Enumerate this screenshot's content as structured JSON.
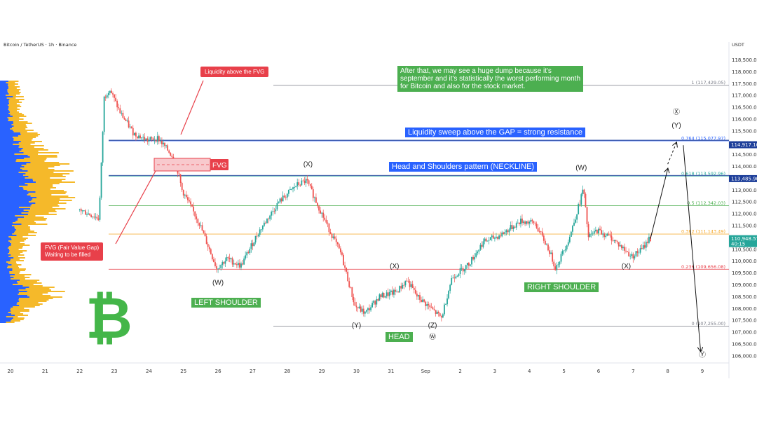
{
  "header": {
    "title": "Bitcoin / TetherUS · 1h · Binance",
    "currency": "USDT"
  },
  "colors": {
    "up": "#26a69a",
    "down": "#ef5350",
    "green_box": "#4caf50",
    "blue_box": "#2962ff",
    "red_box": "#e8404a",
    "volume_profile_up": "#f5b92a",
    "volume_profile_down": "#2962ff",
    "btc_logo": "#44b649"
  },
  "chart_data": {
    "type": "candlestick",
    "x_ticks": [
      "20",
      "21",
      "22",
      "23",
      "24",
      "25",
      "26",
      "27",
      "28",
      "29",
      "30",
      "31",
      "Sep",
      "2",
      "3",
      "4",
      "5",
      "6",
      "7",
      "8",
      "9"
    ],
    "y_ticks": [
      "118,500.00",
      "118,000.00",
      "117,500.00",
      "117,000.00",
      "116,500.00",
      "116,000.00",
      "115,500.00",
      "115,000.00",
      "114,500.00",
      "114,000.00",
      "113,500.00",
      "113,000.00",
      "112,500.00",
      "112,000.00",
      "111,500.00",
      "111,000.00",
      "110,500.00",
      "110,000.00",
      "109,500.00",
      "109,000.00",
      "108,500.00",
      "108,000.00",
      "107,500.00",
      "107,000.00",
      "106,500.00",
      "106,000.00"
    ],
    "y_range": [
      105700,
      118900
    ],
    "path_key_points": [
      {
        "day": 22.0,
        "price": 112200
      },
      {
        "day": 22.6,
        "price": 111800
      },
      {
        "day": 22.75,
        "price": 116900
      },
      {
        "day": 22.9,
        "price": 117300
      },
      {
        "day": 23.2,
        "price": 116300
      },
      {
        "day": 23.6,
        "price": 115400
      },
      {
        "day": 24.0,
        "price": 115100
      },
      {
        "day": 24.3,
        "price": 115200
      },
      {
        "day": 24.8,
        "price": 114300
      },
      {
        "day": 25.0,
        "price": 113000
      },
      {
        "day": 25.5,
        "price": 111600
      },
      {
        "day": 26.0,
        "price": 109700
      },
      {
        "day": 26.3,
        "price": 110100
      },
      {
        "day": 26.7,
        "price": 109800
      },
      {
        "day": 27.2,
        "price": 111200
      },
      {
        "day": 27.8,
        "price": 112500
      },
      {
        "day": 28.3,
        "price": 113200
      },
      {
        "day": 28.6,
        "price": 113400
      },
      {
        "day": 29.2,
        "price": 111500
      },
      {
        "day": 29.6,
        "price": 110300
      },
      {
        "day": 30.0,
        "price": 108100
      },
      {
        "day": 30.3,
        "price": 107800
      },
      {
        "day": 30.7,
        "price": 108500
      },
      {
        "day": 31.2,
        "price": 108700
      },
      {
        "day": 31.5,
        "price": 109200
      },
      {
        "day": 31.8,
        "price": 108500
      },
      {
        "day": 32.2,
        "price": 108000
      },
      {
        "day": 32.5,
        "price": 107600
      },
      {
        "day": 32.8,
        "price": 109300
      },
      {
        "day": 33.3,
        "price": 109900
      },
      {
        "day": 33.7,
        "price": 110800
      },
      {
        "day": 34.2,
        "price": 111100
      },
      {
        "day": 34.8,
        "price": 111700
      },
      {
        "day": 35.2,
        "price": 111600
      },
      {
        "day": 35.6,
        "price": 110500
      },
      {
        "day": 35.8,
        "price": 109700
      },
      {
        "day": 36.2,
        "price": 111000
      },
      {
        "day": 36.5,
        "price": 112500
      },
      {
        "day": 36.6,
        "price": 113100
      },
      {
        "day": 36.75,
        "price": 111000
      },
      {
        "day": 37.0,
        "price": 111300
      },
      {
        "day": 37.4,
        "price": 111000
      },
      {
        "day": 37.7,
        "price": 110600
      },
      {
        "day": 38.0,
        "price": 110200
      },
      {
        "day": 38.3,
        "price": 110500
      },
      {
        "day": 38.5,
        "price": 110950
      }
    ],
    "projection": [
      {
        "day": 38.5,
        "price": 110950
      },
      {
        "day": 39.0,
        "price": 113900
      }
    ],
    "projection_dashed": [
      {
        "day": 39.0,
        "price": 114100
      },
      {
        "day": 39.25,
        "price": 115000
      }
    ],
    "projection_down": [
      {
        "day": 39.45,
        "price": 114900
      },
      {
        "day": 39.95,
        "price": 106200
      }
    ],
    "fib_levels": [
      {
        "ratio": "1",
        "price": 117429.05,
        "label": "1 (117,429.05)",
        "color": "#787b86"
      },
      {
        "ratio": "0.764",
        "price": 115077.97,
        "label": "0.764 (115,077.97)",
        "color": "#2962ff"
      },
      {
        "ratio": "0.618",
        "price": 113592.96,
        "label": "0.618 (113,592.96)",
        "color": "#26a69a"
      },
      {
        "ratio": "0.5",
        "price": 112342.03,
        "label": "0.5 (112,342.03)",
        "color": "#4caf50"
      },
      {
        "ratio": "0.382",
        "price": 111143.49,
        "label": "0.382 (111,143.49)",
        "color": "#f5a623"
      },
      {
        "ratio": "0.236",
        "price": 109656.08,
        "label": "0.236 (109,656.08)",
        "color": "#e8404a"
      },
      {
        "ratio": "0",
        "price": 107255.0,
        "label": "0 (107,255.00)",
        "color": "#787b86"
      }
    ],
    "price_tags": [
      {
        "price": 114917.1,
        "label": "114,917.10",
        "color": "#1e3f9a"
      },
      {
        "price": 113485.9,
        "label": "113,485.90",
        "color": "#1e3f9a"
      },
      {
        "price": 110948.57,
        "label": "110,948.57",
        "sub": "40:15",
        "color": "#26a69a"
      }
    ],
    "wave_labels": [
      {
        "text": "(W)",
        "day": 26.0,
        "price": 109000
      },
      {
        "text": "(X)",
        "day": 28.6,
        "price": 114000
      },
      {
        "text": "(Y)",
        "day": 30.0,
        "price": 107200
      },
      {
        "text": "(X)",
        "day": 31.1,
        "price": 109700
      },
      {
        "text": "(Z)",
        "day": 32.2,
        "price": 107200
      },
      {
        "text": "Ⓦ",
        "day": 32.2,
        "price": 106700
      },
      {
        "text": "(W)",
        "day": 36.5,
        "price": 113850
      },
      {
        "text": "(X)",
        "day": 37.8,
        "price": 109700
      },
      {
        "text": "Ⓧ",
        "day": 39.25,
        "price": 116200
      },
      {
        "text": "(Y)",
        "day": 39.25,
        "price": 115650
      },
      {
        "text": "Ⓨ",
        "day": 40.0,
        "price": 105950
      }
    ]
  },
  "annotations": {
    "liquidity_fvg": "Liquidity above the FVG",
    "fvg": "FVG",
    "fvg_note_line1": "FVG (Fair Value Gap)",
    "fvg_note_line2": "Waiting to be filled",
    "dump_line1": "After that, we may see a huge dump because it's",
    "dump_line2": "september and it's statistically the worst performing month",
    "dump_line3": "for Bitcoin and also for the stock market.",
    "sweep": "Liquidity sweep above the GAP = strong resistance",
    "neckline": "Head and Shoulders pattern (NECKLINE)",
    "left_shoulder": "LEFT SHOULDER",
    "right_shoulder": "RIGHT SHOULDER",
    "head": "HEAD"
  },
  "logo": {
    "symbol": "₿"
  }
}
